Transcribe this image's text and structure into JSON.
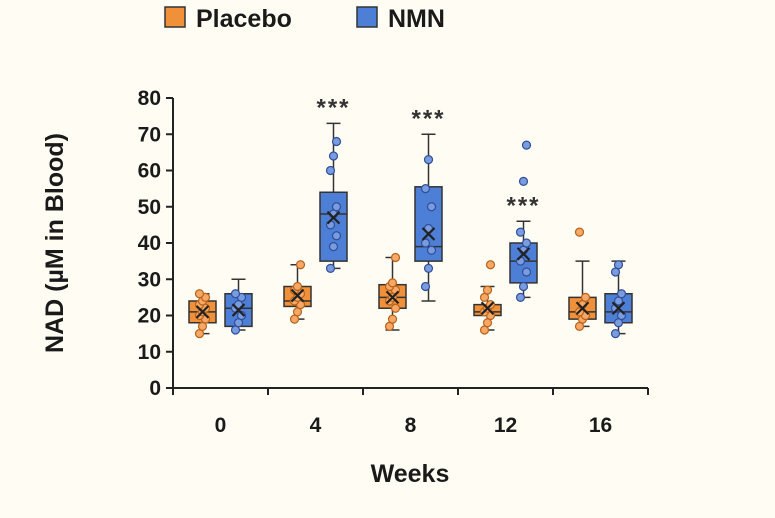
{
  "chart_data": {
    "type": "box",
    "xlabel": "Weeks",
    "ylabel": "NAD (µM in Blood)",
    "ylim": [
      0,
      80
    ],
    "yticks": [
      "0",
      "10",
      "20",
      "30",
      "40",
      "50",
      "60",
      "70",
      "80"
    ],
    "categories": [
      "0",
      "4",
      "8",
      "12",
      "16"
    ],
    "legend": {
      "position": "top-left"
    },
    "grid": false,
    "series": [
      {
        "name": "Placebo",
        "color": "#f0913a",
        "boxes": [
          {
            "whisker_low": 15,
            "q1": 18,
            "median": 21,
            "mean": 21,
            "q3": 24,
            "whisker_high": 26,
            "points": [
              15,
              17,
              19,
              20,
              21,
              22,
              23,
              24,
              25,
              26
            ]
          },
          {
            "whisker_low": 19,
            "q1": 22.5,
            "median": 24,
            "mean": 25.5,
            "q3": 28,
            "whisker_high": 34,
            "points": [
              19,
              21,
              23,
              24,
              25,
              26,
              27,
              28,
              34
            ]
          },
          {
            "whisker_low": 16,
            "q1": 22,
            "median": 25,
            "mean": 25,
            "q3": 28.5,
            "whisker_high": 36,
            "points": [
              17,
              19,
              22,
              24,
              25,
              27,
              28,
              29,
              36
            ]
          },
          {
            "whisker_low": 16,
            "q1": 20,
            "median": 21,
            "mean": 22,
            "q3": 23,
            "whisker_high": 28,
            "points": [
              16,
              18,
              20,
              21,
              22,
              23,
              25,
              27,
              34
            ]
          },
          {
            "whisker_low": 17,
            "q1": 19,
            "median": 21,
            "mean": 22,
            "q3": 25,
            "whisker_high": 35,
            "points": [
              17,
              19,
              20,
              21,
              23,
              25,
              43
            ]
          }
        ]
      },
      {
        "name": "NMN",
        "color": "#4d7fd6",
        "boxes": [
          {
            "whisker_low": 16,
            "q1": 17,
            "median": 22,
            "mean": 21.5,
            "q3": 26,
            "whisker_high": 30,
            "points": [
              16,
              18,
              20,
              22,
              23,
              25,
              26
            ]
          },
          {
            "whisker_low": 33,
            "q1": 35,
            "median": 48,
            "mean": 47,
            "q3": 54,
            "whisker_high": 73,
            "points": [
              33,
              39,
              42,
              45,
              48,
              50,
              60,
              64,
              68
            ]
          },
          {
            "whisker_low": 24,
            "q1": 35,
            "median": 39,
            "mean": 42.5,
            "q3": 55.5,
            "whisker_high": 70,
            "points": [
              28,
              33,
              38,
              40,
              44,
              50,
              55,
              63
            ]
          },
          {
            "whisker_low": 25,
            "q1": 29,
            "median": 35,
            "mean": 37,
            "q3": 40,
            "whisker_high": 46,
            "points": [
              25,
              28,
              32,
              35,
              38,
              40,
              43,
              57,
              67
            ]
          },
          {
            "whisker_low": 15,
            "q1": 18,
            "median": 21,
            "mean": 22,
            "q3": 26,
            "whisker_high": 35,
            "points": [
              15,
              18,
              20,
              22,
              24,
              26,
              32,
              34
            ]
          }
        ]
      }
    ],
    "annotations": [
      {
        "category": "4",
        "text": "***"
      },
      {
        "category": "8",
        "text": "***"
      },
      {
        "category": "12",
        "text": "***"
      }
    ]
  }
}
